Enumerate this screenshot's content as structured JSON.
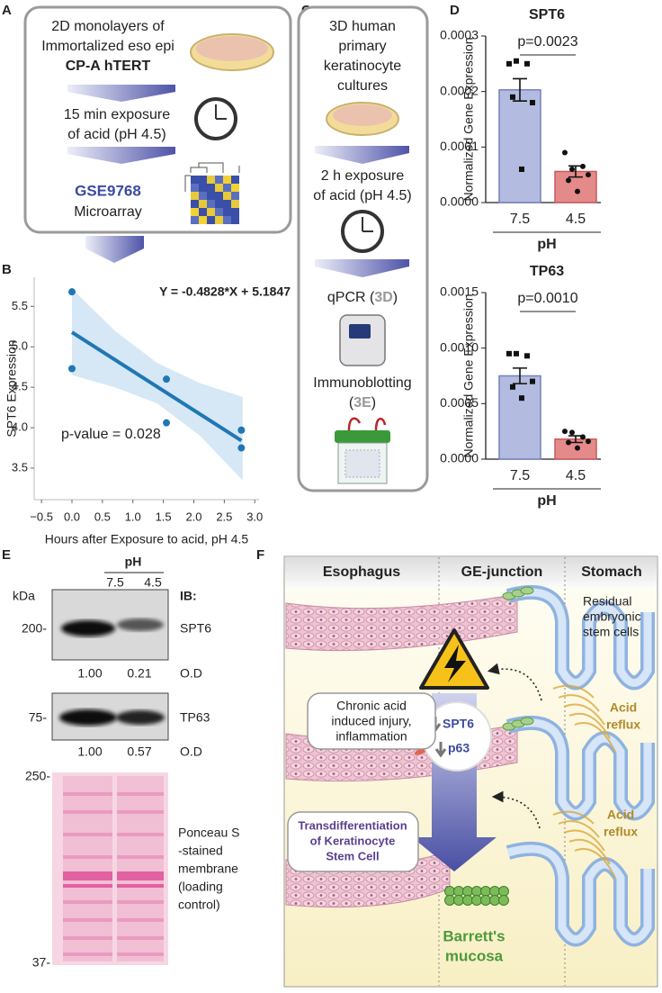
{
  "panel_a": {
    "label": "A",
    "sample": [
      "2D monolayers of",
      "Immortalized eso epi",
      "CP-A hTERT"
    ],
    "treatment": [
      "15 min exposure",
      "of acid (pH 4.5)"
    ],
    "dataset": "GSE9768",
    "method": "Microarray"
  },
  "panel_b": {
    "label": "B"
  },
  "panel_c": {
    "label": "C",
    "sample": [
      "3D human",
      "primary",
      "keratinocyte",
      "cultures"
    ],
    "treatment": [
      "2 h exposure",
      "of acid (pH 4.5)"
    ],
    "qpcr": [
      "qPCR (",
      "3D",
      ")"
    ],
    "blotting": "Immunoblotting",
    "blotting_ref": [
      "(",
      "3E",
      ")"
    ]
  },
  "panel_d": {
    "label": "D"
  },
  "panel_e": {
    "label": "E",
    "ph_title": "pH",
    "lanes": [
      "7.5",
      "4.5"
    ],
    "kda": "kDa",
    "ib": "IB:",
    "blots": [
      {
        "marker": "200-",
        "target": "SPT6",
        "od": [
          "1.00",
          "0.21"
        ],
        "od_label": "O.D"
      },
      {
        "marker": "75-",
        "target": "TP63",
        "od": [
          "1.00",
          "0.57"
        ],
        "od_label": "O.D"
      }
    ],
    "ponceau_markers": [
      "250-",
      "37-"
    ],
    "ponceau_caption": [
      "Ponceau S",
      "-stained",
      "membrane",
      "(loading",
      "control)"
    ]
  },
  "panel_f": {
    "label": "F",
    "regions": [
      "Esophagus",
      "GE-junction",
      "Stomach"
    ],
    "stem_cells": [
      "Residual",
      "embryonic",
      "stem cells"
    ],
    "injury": [
      "Chronic acid",
      "induced injury,",
      "inflammation"
    ],
    "reflux": [
      [
        "Acid",
        "reflux"
      ],
      [
        "Acid",
        "reflux"
      ]
    ],
    "markers": [
      "SPT6",
      "p63"
    ],
    "transdiff": [
      "Transdifferentiation",
      "of Keratinocyte",
      "Stem Cell"
    ],
    "barretts": [
      "Barrett's",
      "mucosa"
    ]
  },
  "chart_data": [
    {
      "type": "scatter",
      "x": [
        0,
        0,
        1.55,
        1.55,
        2.78,
        2.78
      ],
      "values": [
        5.68,
        4.73,
        4.6,
        4.06,
        3.97,
        3.75
      ],
      "fit": {
        "x": [
          0,
          2.78
        ],
        "y": [
          5.18,
          3.84
        ]
      },
      "ci": {
        "x": [
          0,
          0.7,
          1.4,
          2.1,
          2.8
        ],
        "lower": [
          4.65,
          4.5,
          4.3,
          3.9,
          3.35
        ],
        "upper": [
          5.72,
          5.2,
          4.8,
          4.55,
          4.38
        ]
      },
      "color": "#1f77b4",
      "band_color": "#cfe3f3",
      "xlabel": "Hours after Exposure to acid, pH 4.5",
      "ylabel": "SPT6 Expression",
      "equation": "Y = -0.4828*X + 5.1847",
      "annotation": "p-value = 0.028",
      "xlim": [
        -0.62,
        3.07
      ],
      "ylim": [
        3.11,
        5.86
      ],
      "xticks": [
        {
          "value": -0.5,
          "label": "−0.5"
        },
        {
          "value": 0,
          "label": "0.0"
        },
        0.5,
        {
          "value": 1,
          "label": "1.0"
        },
        1.5,
        {
          "value": 2,
          "label": "2.0"
        },
        2.5,
        {
          "value": 3,
          "label": "3.0"
        }
      ],
      "yticks": [
        3.5,
        {
          "value": 4,
          "label": "4.0"
        },
        4.5,
        {
          "value": 5,
          "label": "5.0"
        },
        5.5
      ]
    },
    {
      "type": "bar",
      "title": "SPT6",
      "categories": [
        "7.5",
        "4.5"
      ],
      "values": [
        0.000203,
        5.6e-05
      ],
      "errors": [
        2e-05,
        1e-05
      ],
      "points": [
        [
          0.00025,
          0.000255,
          0.00025,
          0.00018,
          0.00019,
          6e-05
        ],
        [
          9e-05,
          6e-05,
          6.5e-05,
          5e-05,
          4e-05,
          2e-05
        ]
      ],
      "colors": [
        "#b3bbe0",
        "#e58a8a"
      ],
      "edge_colors": [
        "#7580bd",
        "#c65a5a"
      ],
      "xlabel": "pH",
      "ylabel": "Normalized Gene Expression",
      "annotation": "p=0.0023",
      "ylim": [
        0,
        0.0003
      ],
      "yticks": [
        {
          "value": 0,
          "label": "0.0000"
        },
        {
          "value": 0.0001,
          "label": "0.0001"
        },
        {
          "value": 0.0002,
          "label": "0.0002"
        },
        {
          "value": 0.0003,
          "label": "0.0003"
        }
      ]
    },
    {
      "type": "bar",
      "title": "TP63",
      "categories": [
        "7.5",
        "4.5"
      ],
      "values": [
        0.00075,
        0.00018
      ],
      "errors": [
        7e-05,
        3e-05
      ],
      "points": [
        [
          0.00095,
          0.00095,
          0.00093,
          0.0007,
          0.00065,
          0.00055
        ],
        [
          0.00025,
          0.00024,
          0.0002,
          0.00016,
          0.00015,
          0.0001
        ]
      ],
      "colors": [
        "#b3bbe0",
        "#e58a8a"
      ],
      "edge_colors": [
        "#7580bd",
        "#c65a5a"
      ],
      "xlabel": "pH",
      "ylabel": "Normalized Gene Expression",
      "annotation": "p=0.0010",
      "ylim": [
        0,
        0.0015
      ],
      "yticks": [
        {
          "value": 0,
          "label": "0.0000"
        },
        {
          "value": 0.0005,
          "label": "0.0005"
        },
        {
          "value": 0.001,
          "label": "0.0010"
        },
        {
          "value": 0.0015,
          "label": "0.0015"
        }
      ]
    }
  ]
}
